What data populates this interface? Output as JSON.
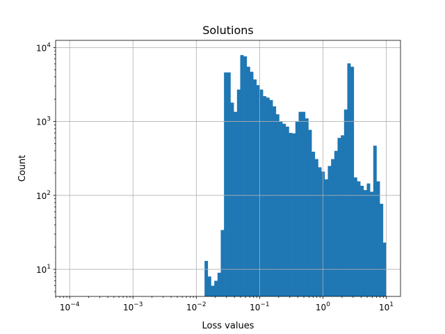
{
  "chart_data": {
    "type": "bar",
    "subtype": "histogram",
    "title": "Solutions",
    "xlabel": "Loss values",
    "ylabel": "Count",
    "xscale": "log",
    "yscale": "log",
    "xlim": [
      6e-05,
      16.8
    ],
    "ylim": [
      4.3,
      12500
    ],
    "grid": true,
    "bar_color": "#1f77b4",
    "x_ticks": [
      {
        "base": "10",
        "exp": "−4",
        "value": 0.0001
      },
      {
        "base": "10",
        "exp": "−3",
        "value": 0.001
      },
      {
        "base": "10",
        "exp": "−2",
        "value": 0.01
      },
      {
        "base": "10",
        "exp": "−1",
        "value": 0.1
      },
      {
        "base": "10",
        "exp": "0",
        "value": 1
      },
      {
        "base": "10",
        "exp": "1",
        "value": 10
      }
    ],
    "y_ticks": [
      {
        "base": "10",
        "exp": "1",
        "value": 10
      },
      {
        "base": "10",
        "exp": "2",
        "value": 100
      },
      {
        "base": "10",
        "exp": "3",
        "value": 1000
      },
      {
        "base": "10",
        "exp": "4",
        "value": 10000
      }
    ],
    "bins_log10_range": [
      -1.87,
      1.0
    ],
    "counts": [
      13,
      8,
      6,
      7,
      9,
      34,
      4600,
      4600,
      1800,
      1350,
      2700,
      7900,
      7600,
      5500,
      4700,
      3700,
      3100,
      2700,
      2200,
      2100,
      1950,
      1600,
      1250,
      1000,
      930,
      850,
      700,
      690,
      990,
      1350,
      1350,
      1100,
      770,
      390,
      310,
      240,
      210,
      165,
      250,
      310,
      400,
      600,
      650,
      1450,
      6100,
      5500,
      175,
      155,
      135,
      118,
      145,
      112,
      470,
      155,
      77,
      23
    ]
  }
}
